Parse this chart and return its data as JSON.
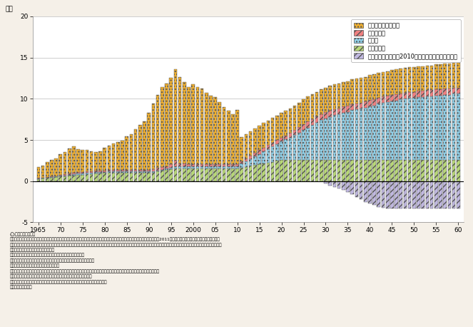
{
  "ylabel": "兆円",
  "ylim": [
    -5,
    20
  ],
  "yticks": [
    -5,
    0,
    5,
    10,
    15,
    20
  ],
  "years": [
    1965,
    1966,
    1967,
    1968,
    1969,
    1970,
    1971,
    1972,
    1973,
    1974,
    1975,
    1976,
    1977,
    1978,
    1979,
    1980,
    1981,
    1982,
    1983,
    1984,
    1985,
    1986,
    1987,
    1988,
    1989,
    1990,
    1991,
    1992,
    1993,
    1994,
    1995,
    1996,
    1997,
    1998,
    1999,
    2000,
    2001,
    2002,
    2003,
    2004,
    2005,
    2006,
    2007,
    2008,
    2009,
    2010,
    2011,
    2012,
    2013,
    2014,
    2015,
    2016,
    2017,
    2018,
    2019,
    2020,
    2021,
    2022,
    2023,
    2024,
    2025,
    2026,
    2027,
    2028,
    2029,
    2030,
    2031,
    2032,
    2033,
    2034,
    2035,
    2036,
    2037,
    2038,
    2039,
    2040,
    2041,
    2042,
    2043,
    2044,
    2045,
    2046,
    2047,
    2048,
    2049,
    2050,
    2051,
    2052,
    2053,
    2054,
    2055,
    2056,
    2057,
    2058,
    2059,
    2060
  ],
  "xticks": [
    1965,
    1970,
    1975,
    1980,
    1985,
    1990,
    1995,
    2000,
    2005,
    2010,
    2015,
    2020,
    2025,
    2030,
    2035,
    2040,
    2045,
    2050,
    2055,
    2060
  ],
  "xtick_labels": [
    "1965",
    "70",
    "75",
    "80",
    "85",
    "90",
    "95",
    "2000",
    "05",
    "10",
    "15",
    "20",
    "25",
    "30",
    "35",
    "40",
    "45",
    "50",
    "55",
    "60"
  ],
  "shinsetsu": [
    1.3,
    1.5,
    1.8,
    2.0,
    2.1,
    2.5,
    2.7,
    3.0,
    3.2,
    2.8,
    2.7,
    2.6,
    2.4,
    2.3,
    2.3,
    2.7,
    3.0,
    3.2,
    3.4,
    3.6,
    4.1,
    4.4,
    5.0,
    5.5,
    5.9,
    6.9,
    7.9,
    8.8,
    9.7,
    10.1,
    10.5,
    11.1,
    10.5,
    9.9,
    9.3,
    9.7,
    9.3,
    9.2,
    8.6,
    8.3,
    8.1,
    7.5,
    6.9,
    6.5,
    6.0,
    6.6,
    3.0,
    3.0,
    3.0,
    3.0,
    3.0,
    3.0,
    3.0,
    3.0,
    3.0,
    3.0,
    3.0,
    3.0,
    3.0,
    3.0,
    3.0,
    3.0,
    3.0,
    3.0,
    3.0,
    3.0,
    3.0,
    3.0,
    3.0,
    3.0,
    3.0,
    3.0,
    3.0,
    3.0,
    3.0,
    3.0,
    3.0,
    3.0,
    3.0,
    3.0,
    3.0,
    3.0,
    3.0,
    3.0,
    3.0,
    3.0,
    3.0,
    3.0,
    3.0,
    3.0,
    3.0,
    3.0,
    3.0,
    3.0,
    3.0,
    3.0
  ],
  "saigai": [
    0.05,
    0.05,
    0.06,
    0.07,
    0.08,
    0.1,
    0.1,
    0.15,
    0.18,
    0.18,
    0.18,
    0.18,
    0.18,
    0.18,
    0.18,
    0.18,
    0.18,
    0.18,
    0.18,
    0.18,
    0.18,
    0.18,
    0.18,
    0.18,
    0.2,
    0.25,
    0.28,
    0.32,
    0.32,
    0.28,
    0.45,
    0.72,
    0.35,
    0.3,
    0.28,
    0.28,
    0.28,
    0.28,
    0.28,
    0.28,
    0.28,
    0.28,
    0.28,
    0.28,
    0.28,
    0.28,
    0.28,
    0.32,
    0.38,
    0.43,
    0.47,
    0.47,
    0.47,
    0.47,
    0.47,
    0.47,
    0.5,
    0.55,
    0.6,
    0.65,
    0.7,
    0.75,
    0.75,
    0.75,
    0.75,
    0.75,
    0.75,
    0.75,
    0.75,
    0.75,
    0.75,
    0.75,
    0.75,
    0.75,
    0.75,
    0.75,
    0.75,
    0.75,
    0.75,
    0.75,
    0.75,
    0.75,
    0.75,
    0.75,
    0.75,
    0.75,
    0.75,
    0.75,
    0.75,
    0.75,
    0.75,
    0.75,
    0.75,
    0.75,
    0.75,
    0.75
  ],
  "koshin": [
    0.04,
    0.05,
    0.06,
    0.07,
    0.08,
    0.09,
    0.1,
    0.12,
    0.15,
    0.15,
    0.15,
    0.15,
    0.15,
    0.15,
    0.15,
    0.15,
    0.15,
    0.15,
    0.15,
    0.15,
    0.15,
    0.15,
    0.15,
    0.15,
    0.15,
    0.15,
    0.15,
    0.15,
    0.15,
    0.15,
    0.15,
    0.25,
    0.25,
    0.25,
    0.25,
    0.25,
    0.25,
    0.25,
    0.25,
    0.25,
    0.25,
    0.25,
    0.25,
    0.25,
    0.25,
    0.25,
    0.45,
    0.65,
    0.85,
    1.05,
    1.25,
    1.45,
    1.65,
    1.85,
    2.05,
    2.25,
    2.45,
    2.7,
    3.0,
    3.3,
    3.6,
    3.9,
    4.2,
    4.5,
    4.8,
    5.0,
    5.2,
    5.4,
    5.5,
    5.7,
    5.8,
    6.0,
    6.1,
    6.2,
    6.3,
    6.5,
    6.6,
    6.8,
    6.9,
    7.0,
    7.1,
    7.2,
    7.3,
    7.4,
    7.5,
    7.5,
    7.6,
    7.6,
    7.7,
    7.7,
    7.8,
    7.8,
    7.9,
    7.9,
    8.0,
    8.0
  ],
  "iji": [
    0.28,
    0.32,
    0.37,
    0.42,
    0.46,
    0.55,
    0.6,
    0.65,
    0.7,
    0.74,
    0.78,
    0.83,
    0.88,
    0.92,
    0.95,
    0.98,
    1.0,
    1.0,
    1.0,
    1.0,
    1.0,
    1.0,
    1.0,
    1.0,
    1.0,
    1.0,
    1.05,
    1.15,
    1.25,
    1.35,
    1.45,
    1.55,
    1.55,
    1.55,
    1.55,
    1.55,
    1.55,
    1.55,
    1.55,
    1.55,
    1.55,
    1.55,
    1.55,
    1.55,
    1.55,
    1.55,
    1.65,
    1.75,
    1.85,
    1.95,
    2.05,
    2.15,
    2.25,
    2.35,
    2.45,
    2.55,
    2.6,
    2.6,
    2.6,
    2.6,
    2.6,
    2.6,
    2.6,
    2.6,
    2.6,
    2.6,
    2.6,
    2.6,
    2.6,
    2.6,
    2.6,
    2.6,
    2.6,
    2.6,
    2.6,
    2.6,
    2.6,
    2.6,
    2.6,
    2.6,
    2.6,
    2.6,
    2.6,
    2.6,
    2.6,
    2.6,
    2.6,
    2.6,
    2.6,
    2.6,
    2.6,
    2.6,
    2.6,
    2.6,
    2.6,
    2.6
  ],
  "chouka": [
    0,
    0,
    0,
    0,
    0,
    0,
    0,
    0,
    0,
    0,
    0,
    0,
    0,
    0,
    0,
    0,
    0,
    0,
    0,
    0,
    0,
    0,
    0,
    0,
    0,
    0,
    0,
    0,
    0,
    0,
    0,
    0,
    0,
    0,
    0,
    0,
    0,
    0,
    0,
    0,
    0,
    0,
    0,
    0,
    0,
    0,
    0,
    0,
    0,
    0,
    0,
    0,
    0,
    0,
    0,
    0,
    0,
    0,
    0,
    0,
    0,
    0,
    0,
    0,
    0,
    -0.3,
    -0.5,
    -0.7,
    -0.9,
    -1.1,
    -1.3,
    -1.6,
    -1.9,
    -2.2,
    -2.5,
    -2.7,
    -2.9,
    -3.1,
    -3.2,
    -3.3,
    -3.3,
    -3.3,
    -3.3,
    -3.3,
    -3.3,
    -3.3,
    -3.3,
    -3.3,
    -3.3,
    -3.3,
    -3.3,
    -3.3,
    -3.3,
    -3.3,
    -3.3,
    -3.3
  ],
  "color_shinsetsu": "#F0B030",
  "color_saigai": "#F08080",
  "color_koshin": "#90D0E8",
  "color_iji": "#B8D878",
  "color_chouka": "#C0B8E0",
  "hatch_shinsetsu": "....",
  "hatch_saigai": "///",
  "hatch_koshin": "....",
  "hatch_iji": "////",
  "hatch_chouka": "////",
  "legend_labels": [
    "新設（充当可能）費",
    "災害復旧費",
    "更新費",
    "維持管理費",
    "維持管理・更新費が2010年度の投賄総額を上回る額"
  ],
  "background_color": "#F5F0E8",
  "plot_bg_color": "#FFFFFF",
  "note_lines": [
    "(注)推計方法について",
    "　国土交通省所管の８分野（道路、港湾、空港、公共賃貸住宅、下水道、都市公园、治水、海岸）の直轄・補助・地単事業を対象に、2011年度以降につぎ次のような設定を行い推計。",
    "　・更新費は、耐用年数を経過した後、同一機能で更新すると仮定し、当初新設費を基準に更新費の実態を踏まえて設定。耐用年数は、法定上の耐用年数を示す財務省令を基に、それぞれの",
    "　　施設の更新の実態を踏まえて設定。",
    "　・維持管理費は、社会資本のストック額との相関に基づき推計。",
    "　（なお、更新費・維持管理費は、近年のコスト縮減の取組み実績を反映）",
    "　・災害復旧費は、過去の年平均値を設定。",
    "　・新設（充当可能）費は、投賄総額から維持管理費、更新費、災害復旧費を差し引いた額であり、新設需要を示したものではない。",
    "　・用地費・補償費を含まない。各高速道路会社等の独法等を含まない。",
    "　なお、今後の予算の推移、技術的知見の蓄積等の観因により推計結果は変動しうる。",
    "資料）　国土交通省"
  ]
}
